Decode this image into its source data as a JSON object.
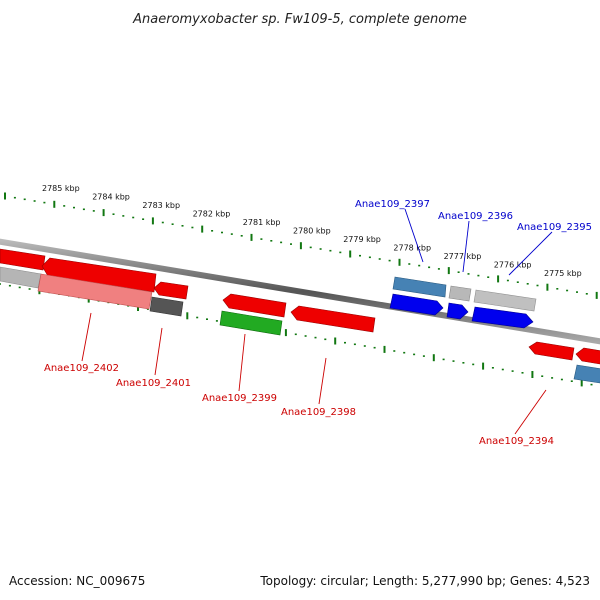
{
  "title": "Anaeromyxobacter sp. Fw109-5, complete genome",
  "footer": {
    "accession": "Accession: NC_009675",
    "summary": "Topology: circular; Length: 5,277,990 bp; Genes: 4,523"
  },
  "colors": {
    "forward_gene": "#0000ee",
    "forward_gene_steel": "#4682b4",
    "reverse_gene": "#ee0000",
    "reverse_gene_pale": "#f08080",
    "rna_gene": "#22aa22",
    "pseudo_gene": "#b0b0b0",
    "pseudo_gene_dark": "#555555",
    "ruler": "#117711",
    "backbone": "#777777",
    "label_forward": "#0000cc",
    "label_reverse": "#cc0000"
  },
  "ruler": {
    "ticks": [
      "2785 kbp",
      "2784 kbp",
      "2783 kbp",
      "2782 kbp",
      "2781 kbp",
      "2780 kbp",
      "2779 kbp",
      "2778 kbp",
      "2777 kbp",
      "2776 kbp",
      "2775 kbp"
    ]
  },
  "gene_labels": {
    "forward": [
      "Anae109_2397",
      "Anae109_2396",
      "Anae109_2395"
    ],
    "reverse": [
      "Anae109_2402",
      "Anae109_2401",
      "Anae109_2399",
      "Anae109_2398",
      "Anae109_2394"
    ]
  }
}
